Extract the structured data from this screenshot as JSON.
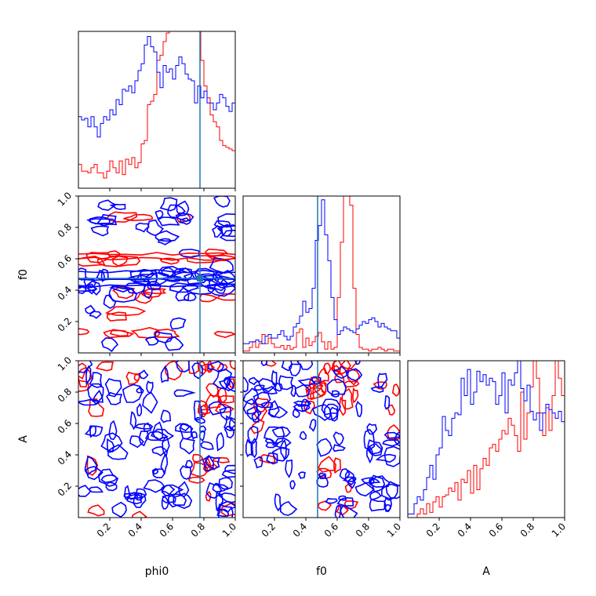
{
  "chart_data": {
    "type": "corner",
    "parameters": [
      "phi0",
      "f0",
      "A"
    ],
    "truth": {
      "phi0": 0.775,
      "f0": 0.475
    },
    "colors": {
      "red": "#ff0000",
      "blue": "#0000ff",
      "truth": "#1f77b4"
    },
    "axis_range": [
      0.0,
      1.0
    ],
    "ticks": [
      0.2,
      0.4,
      0.6,
      0.8,
      1.0
    ],
    "tick_labels": [
      "0.2",
      "0.4",
      "0.6",
      "0.8",
      "1.0"
    ],
    "histograms": {
      "phi0": {
        "blue": [
          0.42,
          0.4,
          0.41,
          0.36,
          0.42,
          0.36,
          0.3,
          0.38,
          0.42,
          0.4,
          0.46,
          0.43,
          0.52,
          0.49,
          0.58,
          0.57,
          0.6,
          0.56,
          0.63,
          0.69,
          0.73,
          0.84,
          0.89,
          0.83,
          0.8,
          0.68,
          0.59,
          0.72,
          0.68,
          0.7,
          0.64,
          0.72,
          0.77,
          0.73,
          0.67,
          0.64,
          0.63,
          0.5,
          0.6,
          0.53,
          0.57,
          0.5,
          0.5,
          0.46,
          0.5,
          0.55,
          0.53,
          0.48,
          0.45,
          0.5
        ],
        "red": [
          0.14,
          0.1,
          0.1,
          0.09,
          0.12,
          0.14,
          0.09,
          0.09,
          0.06,
          0.1,
          0.16,
          0.12,
          0.09,
          0.16,
          0.08,
          0.17,
          0.14,
          0.18,
          0.12,
          0.15,
          0.26,
          0.28,
          0.49,
          0.51,
          0.55,
          0.75,
          0.78,
          0.86,
          0.91,
          0.95,
          0.98,
          1.1,
          1.3,
          1.2,
          1.15,
          1.2,
          1.25,
          1.15,
          0.95,
          0.75,
          0.6,
          0.53,
          0.43,
          0.39,
          0.36,
          0.28,
          0.25,
          0.24,
          0.23,
          0.22
        ]
      },
      "f0": {
        "blue": [
          0.05,
          0.05,
          0.06,
          0.06,
          0.07,
          0.06,
          0.05,
          0.09,
          0.1,
          0.08,
          0.08,
          0.1,
          0.12,
          0.09,
          0.07,
          0.09,
          0.14,
          0.16,
          0.2,
          0.28,
          0.22,
          0.24,
          0.35,
          0.61,
          0.69,
          0.83,
          0.64,
          0.5,
          0.3,
          0.18,
          0.1,
          0.12,
          0.14,
          0.13,
          0.12,
          0.11,
          0.13,
          0.15,
          0.17,
          0.16,
          0.18,
          0.19,
          0.17,
          0.14,
          0.16,
          0.14,
          0.13,
          0.12,
          0.12,
          0.08
        ],
        "red": [
          0.01,
          0.01,
          0.03,
          0.06,
          0.03,
          0.05,
          0.1,
          0.05,
          0.08,
          0.05,
          0.03,
          0.03,
          0.04,
          0.02,
          0.04,
          0.02,
          0.03,
          0.11,
          0.13,
          0.03,
          0.08,
          0.04,
          0.06,
          0.09,
          0.11,
          0.06,
          0.02,
          0.06,
          0.02,
          0.03,
          0.3,
          0.6,
          1.1,
          1.3,
          0.8,
          0.35,
          0.1,
          0.03,
          0.02,
          0.02,
          0.01,
          0.02,
          0.02,
          0.03,
          0.02,
          0.01,
          0.02,
          0.02,
          0.01,
          0.01
        ]
      },
      "A": {
        "blue": [
          0.02,
          0.02,
          0.08,
          0.12,
          0.1,
          0.16,
          0.23,
          0.3,
          0.22,
          0.36,
          0.4,
          0.58,
          0.5,
          0.47,
          0.57,
          0.6,
          0.59,
          0.8,
          0.7,
          0.85,
          0.65,
          0.72,
          0.84,
          0.78,
          0.82,
          0.76,
          0.8,
          0.78,
          0.65,
          0.7,
          0.83,
          0.6,
          0.79,
          0.76,
          0.83,
          0.9,
          0.74,
          0.67,
          0.76,
          0.61,
          0.56,
          0.6,
          0.5,
          0.6,
          0.65,
          0.62,
          0.6,
          0.57,
          0.61,
          0.55
        ],
        "red": [
          0.0,
          0.0,
          0.0,
          0.02,
          0.05,
          0.02,
          0.08,
          0.03,
          0.09,
          0.12,
          0.06,
          0.12,
          0.13,
          0.17,
          0.15,
          0.2,
          0.1,
          0.22,
          0.2,
          0.27,
          0.14,
          0.3,
          0.16,
          0.28,
          0.34,
          0.3,
          0.4,
          0.42,
          0.38,
          0.45,
          0.5,
          0.48,
          0.57,
          0.53,
          0.47,
          0.38,
          0.72,
          0.45,
          0.6,
          0.75,
          0.9,
          0.8,
          0.6,
          0.47,
          0.63,
          0.5,
          0.7,
          0.93,
          0.8,
          0.7
        ]
      }
    },
    "scatter_panels": [
      {
        "x": "phi0",
        "y": "f0"
      },
      {
        "x": "phi0",
        "y": "A"
      },
      {
        "x": "f0",
        "y": "A"
      }
    ]
  }
}
